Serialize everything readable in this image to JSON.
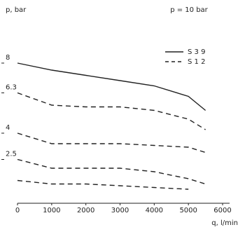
{
  "chart_data": {
    "type": "line",
    "title": "p = 10 bar",
    "y_label": "p, bar",
    "x_label": "q, l/min",
    "x": [
      0,
      1000,
      2000,
      3000,
      4000,
      5000,
      5500
    ],
    "series": [
      {
        "name": "S 3 9",
        "color": "#222222",
        "dash": false,
        "values": [
          8,
          7.6,
          7.3,
          7.0,
          6.7,
          6.1,
          5.3
        ]
      },
      {
        "name": "S 1 2",
        "color": "#222222",
        "dash": true,
        "values": [
          6.3,
          5.6,
          5.5,
          5.5,
          5.3,
          4.8,
          4.2
        ]
      },
      {
        "color": "#222222",
        "dash": true,
        "values": [
          4,
          3.4,
          3.4,
          3.4,
          3.3,
          3.2,
          2.9
        ]
      },
      {
        "color": "#222222",
        "dash": true,
        "values": [
          2.5,
          2.0,
          2.0,
          2.0,
          1.8,
          1.4,
          1.1
        ]
      },
      {
        "color": "#222222",
        "dash": true,
        "values": [
          1.3,
          1.1,
          1.1,
          1.0,
          0.9,
          0.8,
          null
        ]
      }
    ],
    "xlim": [
      0,
      6000
    ],
    "xticks": [
      0,
      1000,
      2000,
      3000,
      4000,
      5000,
      6000
    ],
    "ylim": [
      0,
      10
    ],
    "yticks": [
      8,
      6.3,
      4,
      2.5
    ],
    "legend": "top-right",
    "grid": false
  }
}
